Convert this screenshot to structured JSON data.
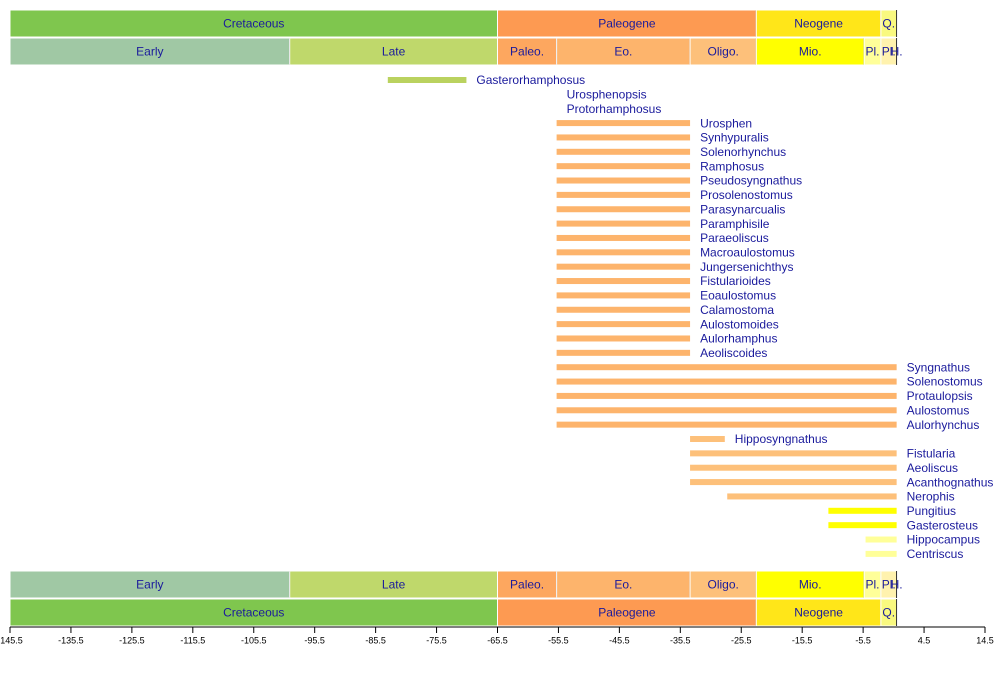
{
  "chart_data": {
    "type": "timeline",
    "xlim": [
      -145.5,
      14.5
    ],
    "xticks": [
      -145.5,
      -135.5,
      -125.5,
      -115.5,
      -105.5,
      -95.5,
      -85.5,
      -75.5,
      -65.5,
      -55.5,
      -45.5,
      -35.5,
      -25.5,
      -15.5,
      -5.5,
      4.5,
      14.5
    ],
    "periods": [
      {
        "name": "Cretaceous",
        "start": -145.5,
        "end": -65.5,
        "color": "#7fc64e"
      },
      {
        "name": "Paleogene",
        "start": -65.5,
        "end": -23.03,
        "color": "#fd9a52"
      },
      {
        "name": "Neogene",
        "start": -23.03,
        "end": -2.588,
        "color": "#ffe619"
      },
      {
        "name": "Q.",
        "start": -2.588,
        "end": 0,
        "color": "#f9f97f"
      }
    ],
    "epochs": [
      {
        "name": "Early",
        "start": -145.5,
        "end": -99.6,
        "color": "#a0c8a4"
      },
      {
        "name": "Late",
        "start": -99.6,
        "end": -65.5,
        "color": "#bfd86b"
      },
      {
        "name": "Paleo.",
        "start": -65.5,
        "end": -55.8,
        "color": "#fda75f"
      },
      {
        "name": "Eo.",
        "start": -55.8,
        "end": -33.9,
        "color": "#fdb46c"
      },
      {
        "name": "Oligo.",
        "start": -33.9,
        "end": -23.03,
        "color": "#fdc07a"
      },
      {
        "name": "Mio.",
        "start": -23.03,
        "end": -5.332,
        "color": "#ffff00"
      },
      {
        "name": "Pl.",
        "start": -5.332,
        "end": -2.588,
        "color": "#ffff99"
      },
      {
        "name": "Pl.",
        "start": -2.588,
        "end": -0.0117,
        "color": "#fff2ae"
      },
      {
        "name": "H.",
        "start": -0.0117,
        "end": 0,
        "color": "#fef2e0"
      }
    ],
    "taxa": [
      {
        "name": "Gasterorhamphosus",
        "start": -83.5,
        "end": -70.6,
        "color": "#bad25f"
      },
      {
        "name": "Urosphenopsis",
        "start": -55.8,
        "end": -55.8,
        "color": "#fdb46c"
      },
      {
        "name": "Protorhamphosus",
        "start": -55.8,
        "end": -55.8,
        "color": "#fdb46c"
      },
      {
        "name": "Urosphen",
        "start": -55.8,
        "end": -33.9,
        "color": "#fdb46c"
      },
      {
        "name": "Synhypuralis",
        "start": -55.8,
        "end": -33.9,
        "color": "#fdb46c"
      },
      {
        "name": "Solenorhynchus",
        "start": -55.8,
        "end": -33.9,
        "color": "#fdb46c"
      },
      {
        "name": "Ramphosus",
        "start": -55.8,
        "end": -33.9,
        "color": "#fdb46c"
      },
      {
        "name": "Pseudosyngnathus",
        "start": -55.8,
        "end": -33.9,
        "color": "#fdb46c"
      },
      {
        "name": "Prosolenostomus",
        "start": -55.8,
        "end": -33.9,
        "color": "#fdb46c"
      },
      {
        "name": "Parasynarcualis",
        "start": -55.8,
        "end": -33.9,
        "color": "#fdb46c"
      },
      {
        "name": "Paramphisile",
        "start": -55.8,
        "end": -33.9,
        "color": "#fdb46c"
      },
      {
        "name": "Paraeoliscus",
        "start": -55.8,
        "end": -33.9,
        "color": "#fdb46c"
      },
      {
        "name": "Macroaulostomus",
        "start": -55.8,
        "end": -33.9,
        "color": "#fdb46c"
      },
      {
        "name": "Jungersenichthys",
        "start": -55.8,
        "end": -33.9,
        "color": "#fdb46c"
      },
      {
        "name": "Fistularioides",
        "start": -55.8,
        "end": -33.9,
        "color": "#fdb46c"
      },
      {
        "name": "Eoaulostomus",
        "start": -55.8,
        "end": -33.9,
        "color": "#fdb46c"
      },
      {
        "name": "Calamostoma",
        "start": -55.8,
        "end": -33.9,
        "color": "#fdb46c"
      },
      {
        "name": "Aulostomoides",
        "start": -55.8,
        "end": -33.9,
        "color": "#fdb46c"
      },
      {
        "name": "Aulorhamphus",
        "start": -55.8,
        "end": -33.9,
        "color": "#fdb46c"
      },
      {
        "name": "Aeoliscoides",
        "start": -55.8,
        "end": -33.9,
        "color": "#fdb46c"
      },
      {
        "name": "Syngnathus",
        "start": -55.8,
        "end": 0,
        "color": "#fdb46c"
      },
      {
        "name": "Solenostomus",
        "start": -55.8,
        "end": 0,
        "color": "#fdb46c"
      },
      {
        "name": "Protaulopsis",
        "start": -55.8,
        "end": 0,
        "color": "#fdb46c"
      },
      {
        "name": "Aulostomus",
        "start": -55.8,
        "end": 0,
        "color": "#fdb46c"
      },
      {
        "name": "Aulorhynchus",
        "start": -55.8,
        "end": 0,
        "color": "#fdb46c"
      },
      {
        "name": "Hipposyngnathus",
        "start": -33.9,
        "end": -28.2,
        "color": "#fdc07a"
      },
      {
        "name": "Fistularia",
        "start": -33.9,
        "end": 0,
        "color": "#fdc07a"
      },
      {
        "name": "Aeoliscus",
        "start": -33.9,
        "end": 0,
        "color": "#fdc07a"
      },
      {
        "name": "Acanthognathus",
        "start": -33.9,
        "end": 0,
        "color": "#fdc07a"
      },
      {
        "name": "Nerophis",
        "start": -27.8,
        "end": 0,
        "color": "#fdc07a"
      },
      {
        "name": "Pungitius",
        "start": -11.2,
        "end": 0,
        "color": "#ffff00"
      },
      {
        "name": "Gasterosteus",
        "start": -11.2,
        "end": 0,
        "color": "#ffff00"
      },
      {
        "name": "Hippocampus",
        "start": -5.1,
        "end": 0,
        "color": "#ffff99"
      },
      {
        "name": "Centriscus",
        "start": -5.1,
        "end": 0,
        "color": "#ffff99"
      }
    ]
  }
}
